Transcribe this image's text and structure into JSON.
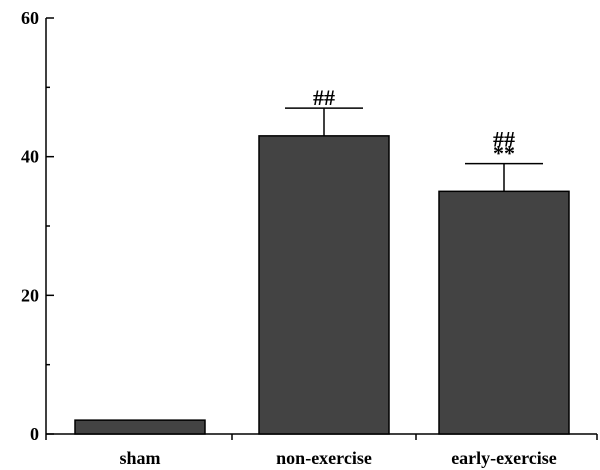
{
  "chart_data": {
    "type": "bar",
    "title": "",
    "xlabel": "",
    "ylabel": "",
    "ylim": [
      0,
      60
    ],
    "yticks": [
      0,
      20,
      40,
      60
    ],
    "categories": [
      "sham",
      "non-exercise",
      "early-exercise"
    ],
    "values": [
      2,
      43,
      35
    ],
    "errors": [
      0,
      4,
      4
    ],
    "annotations": [
      {
        "category": "non-exercise",
        "lines": [
          "##"
        ]
      },
      {
        "category": "early-exercise",
        "lines": [
          "##",
          "**"
        ]
      }
    ],
    "grid": false,
    "legend": "none",
    "colors": {
      "bar_fill": "#434343",
      "bar_stroke": "#000000",
      "axis": "#000000"
    }
  }
}
